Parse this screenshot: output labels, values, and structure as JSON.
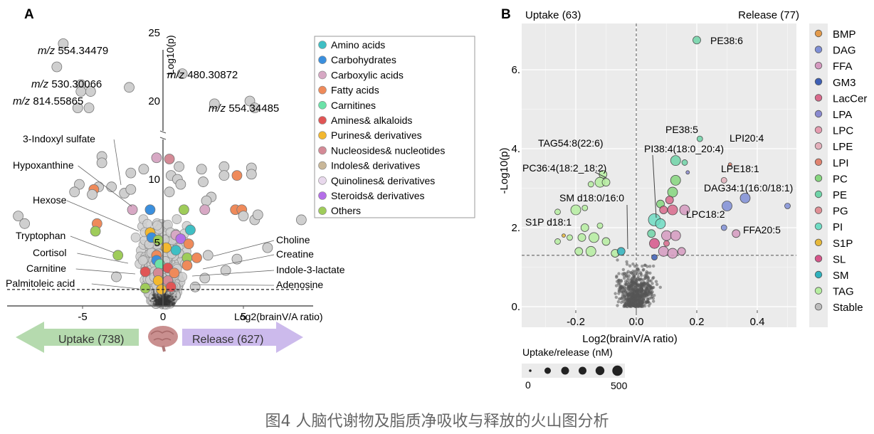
{
  "caption": "图4 人脑代谢物及脂质净吸收与释放的火山图分析",
  "chart_data": [
    {
      "panel": "A",
      "type": "scatter",
      "title": "",
      "xlabel": "Log2(brainV/A ratio)",
      "ylabel": "-Log10(p)",
      "xlim": [
        -6.8,
        6.0
      ],
      "ylim": [
        0,
        26
      ],
      "y_axis_break": [
        12.5,
        17.5
      ],
      "xticks": [
        "-5",
        "0",
        "5"
      ],
      "xtick_values": [
        -5,
        0,
        5
      ],
      "yticks": [
        "5",
        "10",
        "20",
        "25"
      ],
      "ytick_values": [
        5,
        10,
        20,
        25
      ],
      "threshold_y": 1.3,
      "grid": false,
      "legend_position": "right",
      "legend": [
        {
          "name": "Amino acids",
          "color": "#3fbfc4"
        },
        {
          "name": "Carbohydrates",
          "color": "#3a8fde"
        },
        {
          "name": "Carboxylic acids",
          "color": "#d7a8c4"
        },
        {
          "name": "Fatty acids",
          "color": "#ef8a5a"
        },
        {
          "name": "Carnitines",
          "color": "#6be2a8"
        },
        {
          "name": "Amines& alkaloids",
          "color": "#e05555"
        },
        {
          "name": "Purines& derivatives",
          "color": "#f3b82f"
        },
        {
          "name": "Nucleosides& nucleotides",
          "color": "#d48a96"
        },
        {
          "name": "Indoles& derivatives",
          "color": "#c9b798"
        },
        {
          "name": "Quinolines& derivatives",
          "color": "#e8d8ec"
        },
        {
          "name": "Steroids& derivatives",
          "color": "#b46ee8"
        },
        {
          "name": "Others",
          "color": "#9fcc5a"
        }
      ],
      "stable_color": "#cfcfcf",
      "annotations_left": [
        "3-Indoxyl sulfate",
        "Hypoxanthine",
        "Hexose",
        "Tryptophan",
        "Cortisol",
        "Carnitine",
        "Palmitoleic acid"
      ],
      "annotations_right": [
        "Choline",
        "Creatine",
        "Indole-3-lactate",
        "Adenosine"
      ],
      "mz_labels": [
        {
          "prefix": "m/z",
          "value": "554.34479",
          "x": -6.2,
          "y": 24.2
        },
        {
          "prefix": "m/z",
          "value": "530.30066",
          "x": -6.6,
          "y": 22.5
        },
        {
          "prefix": "m/z",
          "value": "814.55865",
          "x": -5.1,
          "y": 21.0
        },
        {
          "prefix": "m/z",
          "value": "480.30872",
          "x": 1.2,
          "y": 22.0
        },
        {
          "prefix": "m/z",
          "value": "554.34485",
          "x": 2.3,
          "y": 19.8
        }
      ],
      "points": [
        {
          "x": -6.2,
          "y": 24.2,
          "c": "stable"
        },
        {
          "x": -6.6,
          "y": 22.5,
          "c": "stable"
        },
        {
          "x": -5.1,
          "y": 21.2,
          "c": "stable"
        },
        {
          "x": -5.1,
          "y": 20.7,
          "c": "stable"
        },
        {
          "x": -4.5,
          "y": 20.7,
          "c": "stable"
        },
        {
          "x": -5.3,
          "y": 19.5,
          "c": "stable"
        },
        {
          "x": -4.6,
          "y": 19.5,
          "c": "stable"
        },
        {
          "x": -2.1,
          "y": 21.0,
          "c": "stable"
        },
        {
          "x": 1.2,
          "y": 22.0,
          "c": "stable"
        },
        {
          "x": 3.2,
          "y": 19.8,
          "c": "stable"
        },
        {
          "x": 5.4,
          "y": 20.0,
          "c": "stable"
        },
        {
          "x": 5.7,
          "y": 19.5,
          "c": "stable"
        },
        {
          "x": -3.8,
          "y": 11.8,
          "c": "stable"
        },
        {
          "x": -3.8,
          "y": 11.3,
          "c": "stable"
        },
        {
          "x": -0.4,
          "y": 11.7,
          "c": "Carboxylic acids"
        },
        {
          "x": 0.4,
          "y": 11.6,
          "c": "Nucleosides& nucleotides"
        },
        {
          "x": -1.2,
          "y": 10.8,
          "c": "stable"
        },
        {
          "x": -2.0,
          "y": 10.5,
          "c": "stable"
        },
        {
          "x": 1.0,
          "y": 11.0,
          "c": "stable"
        },
        {
          "x": 2.4,
          "y": 10.8,
          "c": "stable"
        },
        {
          "x": 3.8,
          "y": 11.0,
          "c": "stable"
        },
        {
          "x": 5.5,
          "y": 10.9,
          "c": "stable"
        },
        {
          "x": 5.5,
          "y": 10.4,
          "c": "stable"
        },
        {
          "x": 3.8,
          "y": 10.3,
          "c": "stable"
        },
        {
          "x": 4.6,
          "y": 10.3,
          "c": "Fatty acids"
        },
        {
          "x": 0.5,
          "y": 10.3,
          "c": "stable"
        },
        {
          "x": 0.9,
          "y": 10.0,
          "c": "stable"
        },
        {
          "x": 1.1,
          "y": 9.6,
          "c": "stable"
        },
        {
          "x": 2.5,
          "y": 9.8,
          "c": "stable"
        },
        {
          "x": -4.0,
          "y": 9.4,
          "c": "stable"
        },
        {
          "x": -5.2,
          "y": 9.6,
          "c": "stable"
        },
        {
          "x": -5.5,
          "y": 9.0,
          "c": "stable"
        },
        {
          "x": -4.3,
          "y": 9.2,
          "c": "Fatty acids"
        },
        {
          "x": -3.2,
          "y": 9.4,
          "c": "stable"
        },
        {
          "x": -2.4,
          "y": 8.9,
          "c": "stable"
        },
        {
          "x": -2.0,
          "y": 9.2,
          "c": "stable"
        },
        {
          "x": 0.4,
          "y": 9.0,
          "c": "stable"
        },
        {
          "x": -4.4,
          "y": 8.8,
          "c": "stable"
        },
        {
          "x": 3.0,
          "y": 8.6,
          "c": "stable"
        },
        {
          "x": 2.7,
          "y": 8.3,
          "c": "stable"
        },
        {
          "x": -1.9,
          "y": 7.6,
          "c": "Carboxylic acids"
        },
        {
          "x": -0.8,
          "y": 7.6,
          "c": "Carbohydrates"
        },
        {
          "x": 1.3,
          "y": 7.6,
          "c": "Others"
        },
        {
          "x": 2.6,
          "y": 7.6,
          "c": "Carboxylic acids"
        },
        {
          "x": 4.5,
          "y": 7.6,
          "c": "Fatty acids"
        },
        {
          "x": 4.9,
          "y": 7.6,
          "c": "Fatty acids"
        },
        {
          "x": 5.0,
          "y": 7.1,
          "c": "stable"
        },
        {
          "x": 5.7,
          "y": 6.8,
          "c": "stable"
        },
        {
          "x": 5.9,
          "y": 7.2,
          "c": "stable"
        },
        {
          "x": 8.6,
          "y": 6.8,
          "c": "stable"
        },
        {
          "x": -9.0,
          "y": 7.1,
          "c": "stable"
        },
        {
          "x": -8.6,
          "y": 6.5,
          "c": "stable"
        },
        {
          "x": -4.1,
          "y": 6.5,
          "c": "Fatty acids"
        },
        {
          "x": -4.2,
          "y": 5.9,
          "c": "Others"
        },
        {
          "x": -0.8,
          "y": 5.8,
          "c": "Purines& derivatives"
        },
        {
          "x": -0.7,
          "y": 5.4,
          "c": "Carbohydrates"
        },
        {
          "x": -0.3,
          "y": 5.2,
          "c": "Others"
        },
        {
          "x": 1.7,
          "y": 6.0,
          "c": "Amino acids"
        },
        {
          "x": 0.8,
          "y": 5.6,
          "c": "Carboxylic acids"
        },
        {
          "x": 1.1,
          "y": 5.3,
          "c": "Steroids& derivatives"
        },
        {
          "x": 1.6,
          "y": 4.9,
          "c": "Fatty acids"
        },
        {
          "x": 0.2,
          "y": 4.6,
          "c": "Purines& derivatives"
        },
        {
          "x": 0.8,
          "y": 4.4,
          "c": "Amino acids"
        },
        {
          "x": -0.4,
          "y": 4.0,
          "c": "Fatty acids"
        },
        {
          "x": -2.8,
          "y": 4.0,
          "c": "Others"
        },
        {
          "x": 1.5,
          "y": 3.8,
          "c": "Others"
        },
        {
          "x": 2.1,
          "y": 3.8,
          "c": "Fatty acids"
        },
        {
          "x": -0.4,
          "y": 3.6,
          "c": "Carbohydrates"
        },
        {
          "x": -0.2,
          "y": 3.3,
          "c": "Carnitines"
        },
        {
          "x": 0.3,
          "y": 3.0,
          "c": "Amines& alkaloids"
        },
        {
          "x": 1.5,
          "y": 3.2,
          "c": "Fatty acids"
        },
        {
          "x": -1.1,
          "y": 2.7,
          "c": "Amines& alkaloids"
        },
        {
          "x": -0.3,
          "y": 2.6,
          "c": "Nucleosides& nucleotides"
        },
        {
          "x": 0.7,
          "y": 2.6,
          "c": "Fatty acids"
        },
        {
          "x": -0.3,
          "y": 2.0,
          "c": "Purines& derivatives"
        },
        {
          "x": 0.3,
          "y": 2.0,
          "c": "Nucleosides& nucleotides"
        },
        {
          "x": -1.1,
          "y": 1.4,
          "c": "Others"
        },
        {
          "x": -0.1,
          "y": 1.3,
          "c": "Purines& derivatives"
        },
        {
          "x": 0.5,
          "y": 1.5,
          "c": "Amines& alkaloids"
        },
        {
          "x": 2.8,
          "y": 4.0,
          "c": "stable"
        },
        {
          "x": 4.6,
          "y": 3.7,
          "c": "stable"
        },
        {
          "x": 6.5,
          "y": 4.6,
          "c": "stable"
        },
        {
          "x": 3.9,
          "y": 2.8,
          "c": "stable"
        },
        {
          "x": 2.6,
          "y": 2.2,
          "c": "stable"
        },
        {
          "x": -2.9,
          "y": 2.3,
          "c": "stable"
        },
        {
          "x": 2.0,
          "y": 1.5,
          "c": "stable"
        }
      ]
    },
    {
      "panel": "B",
      "type": "scatter",
      "title": "",
      "header_left": "Uptake (63)",
      "header_right": "Release (77)",
      "xlabel": "Log2(brainV/A ratio)",
      "ylabel": "-Log10(p)",
      "xlim": [
        -0.36,
        0.52
      ],
      "ylim": [
        -0.4,
        6.9
      ],
      "xticks": [
        "-0.2",
        "0.0",
        "0.2",
        "0.4"
      ],
      "xtick_values": [
        -0.2,
        0.0,
        0.2,
        0.4
      ],
      "yticks": [
        "0.",
        "2.",
        "4.",
        "6."
      ],
      "ytick_values": [
        0,
        2,
        4,
        6
      ],
      "threshold_y": 1.3,
      "threshold_x": 0.0,
      "grid": true,
      "legend_position": "right",
      "legend": [
        {
          "name": "BMP",
          "color": "#e39a4a"
        },
        {
          "name": "DAG",
          "color": "#7f8fd6"
        },
        {
          "name": "FFA",
          "color": "#d59ac0"
        },
        {
          "name": "GM3",
          "color": "#3d5fb5"
        },
        {
          "name": "LacCer",
          "color": "#d96a8c"
        },
        {
          "name": "LPA",
          "color": "#8a8ad0"
        },
        {
          "name": "LPC",
          "color": "#e59cb0"
        },
        {
          "name": "LPE",
          "color": "#e3b0bb"
        },
        {
          "name": "LPI",
          "color": "#e0836f"
        },
        {
          "name": "PC",
          "color": "#86d67e"
        },
        {
          "name": "PE",
          "color": "#6fd4a8"
        },
        {
          "name": "PG",
          "color": "#e08f95"
        },
        {
          "name": "PI",
          "color": "#6fdcc4"
        },
        {
          "name": "S1P",
          "color": "#e6b83a"
        },
        {
          "name": "SL",
          "color": "#d6558a"
        },
        {
          "name": "SM",
          "color": "#2fb2bd"
        },
        {
          "name": "TAG",
          "color": "#b6eea0"
        },
        {
          "name": "Stable",
          "color": "#bcbcbc"
        }
      ],
      "size_legend": {
        "title": "Uptake/release (nM)",
        "min_label": "0",
        "max_label": "500",
        "steps": 6
      },
      "labels": [
        {
          "text": "PE38:6",
          "x": 0.2,
          "y": 6.75
        },
        {
          "text": "PE38:5",
          "x": 0.21,
          "y": 4.25
        },
        {
          "text": "LPI20:4",
          "x": 0.31,
          "y": 3.85
        },
        {
          "text": "PI38:4(18:0_20:4)",
          "x": 0.09,
          "y": 3.6
        },
        {
          "text": "LPE18:1",
          "x": 0.29,
          "y": 3.25
        },
        {
          "text": "DAG34:1(16:0/18:1)",
          "x": 0.35,
          "y": 2.75
        },
        {
          "text": "LPC18:2",
          "x": 0.07,
          "y": 2.35
        },
        {
          "text": "FFA20:5",
          "x": 0.34,
          "y": 1.95
        },
        {
          "text": "TAG54:8(22:6)",
          "x": -0.12,
          "y": 3.3
        },
        {
          "text": "PC36:4(18:2_18:2)",
          "x": -0.12,
          "y": 3.15
        },
        {
          "text": "SM d18:0/16:0",
          "x": -0.05,
          "y": 1.4
        },
        {
          "text": "S1P d18:1",
          "x": -0.27,
          "y": 1.75
        }
      ],
      "points": [
        {
          "x": 0.2,
          "y": 6.75,
          "c": "PE",
          "s": 2
        },
        {
          "x": 0.21,
          "y": 4.25,
          "c": "PE",
          "s": 1
        },
        {
          "x": 0.31,
          "y": 3.6,
          "c": "LPI",
          "s": 0
        },
        {
          "x": 0.29,
          "y": 3.2,
          "c": "LPE",
          "s": 1
        },
        {
          "x": 0.13,
          "y": 3.7,
          "c": "PE",
          "s": 3
        },
        {
          "x": 0.16,
          "y": 3.65,
          "c": "PE",
          "s": 1
        },
        {
          "x": 0.17,
          "y": 3.4,
          "c": "LPA",
          "s": 0
        },
        {
          "x": 0.36,
          "y": 2.75,
          "c": "DAG",
          "s": 3
        },
        {
          "x": 0.3,
          "y": 2.55,
          "c": "DAG",
          "s": 3
        },
        {
          "x": 0.5,
          "y": 2.55,
          "c": "DAG",
          "s": 1
        },
        {
          "x": 0.29,
          "y": 2.0,
          "c": "DAG",
          "s": 1
        },
        {
          "x": 0.33,
          "y": 1.85,
          "c": "FFA",
          "s": 2
        },
        {
          "x": 0.16,
          "y": 2.45,
          "c": "FFA",
          "s": 3
        },
        {
          "x": 0.13,
          "y": 3.2,
          "c": "PC",
          "s": 3
        },
        {
          "x": 0.12,
          "y": 2.9,
          "c": "PC",
          "s": 3
        },
        {
          "x": 0.11,
          "y": 2.7,
          "c": "LacCer",
          "s": 2
        },
        {
          "x": 0.12,
          "y": 2.45,
          "c": "LacCer",
          "s": 3
        },
        {
          "x": 0.08,
          "y": 2.6,
          "c": "PC",
          "s": 2
        },
        {
          "x": 0.06,
          "y": 2.2,
          "c": "PI",
          "s": 4
        },
        {
          "x": 0.08,
          "y": 2.1,
          "c": "PI",
          "s": 3
        },
        {
          "x": 0.09,
          "y": 2.45,
          "c": "LacCer",
          "s": 2
        },
        {
          "x": 0.05,
          "y": 1.85,
          "c": "PE",
          "s": 2
        },
        {
          "x": 0.06,
          "y": 1.6,
          "c": "SL",
          "s": 3
        },
        {
          "x": 0.1,
          "y": 1.8,
          "c": "FFA",
          "s": 3
        },
        {
          "x": 0.13,
          "y": 1.8,
          "c": "FFA",
          "s": 3
        },
        {
          "x": 0.09,
          "y": 1.4,
          "c": "FFA",
          "s": 3
        },
        {
          "x": 0.12,
          "y": 1.35,
          "c": "FFA",
          "s": 3
        },
        {
          "x": 0.15,
          "y": 1.4,
          "c": "FFA",
          "s": 2
        },
        {
          "x": 0.06,
          "y": 1.25,
          "c": "GM3",
          "s": 1
        },
        {
          "x": 0.1,
          "y": 1.6,
          "c": "LacCer",
          "s": 1
        },
        {
          "x": -0.11,
          "y": 3.35,
          "c": "TAG",
          "s": 2
        },
        {
          "x": -0.12,
          "y": 3.15,
          "c": "TAG",
          "s": 3
        },
        {
          "x": -0.1,
          "y": 3.15,
          "c": "TAG",
          "s": 2
        },
        {
          "x": -0.15,
          "y": 3.1,
          "c": "TAG",
          "s": 1
        },
        {
          "x": -0.2,
          "y": 2.45,
          "c": "TAG",
          "s": 3
        },
        {
          "x": -0.26,
          "y": 2.4,
          "c": "TAG",
          "s": 1
        },
        {
          "x": -0.17,
          "y": 2.5,
          "c": "TAG",
          "s": 1
        },
        {
          "x": -0.17,
          "y": 2.0,
          "c": "TAG",
          "s": 2
        },
        {
          "x": -0.12,
          "y": 2.05,
          "c": "TAG",
          "s": 1
        },
        {
          "x": -0.18,
          "y": 1.75,
          "c": "TAG",
          "s": 2
        },
        {
          "x": -0.14,
          "y": 1.75,
          "c": "TAG",
          "s": 3
        },
        {
          "x": -0.1,
          "y": 1.65,
          "c": "TAG",
          "s": 2
        },
        {
          "x": -0.22,
          "y": 1.75,
          "c": "TAG",
          "s": 1
        },
        {
          "x": -0.15,
          "y": 1.4,
          "c": "TAG",
          "s": 3
        },
        {
          "x": -0.19,
          "y": 1.4,
          "c": "TAG",
          "s": 2
        },
        {
          "x": -0.07,
          "y": 1.35,
          "c": "TAG",
          "s": 2
        },
        {
          "x": -0.05,
          "y": 1.4,
          "c": "SM",
          "s": 2
        },
        {
          "x": -0.26,
          "y": 1.65,
          "c": "TAG",
          "s": 1
        },
        {
          "x": -0.24,
          "y": 1.8,
          "c": "S1P",
          "s": 0
        }
      ],
      "stable_point_count": 600
    }
  ],
  "panel_a": {
    "label": "A",
    "arrow_left": "Uptake (738)",
    "arrow_right": "Release (627)",
    "brain_icon": "brain-icon"
  },
  "panel_b": {
    "label": "B"
  }
}
